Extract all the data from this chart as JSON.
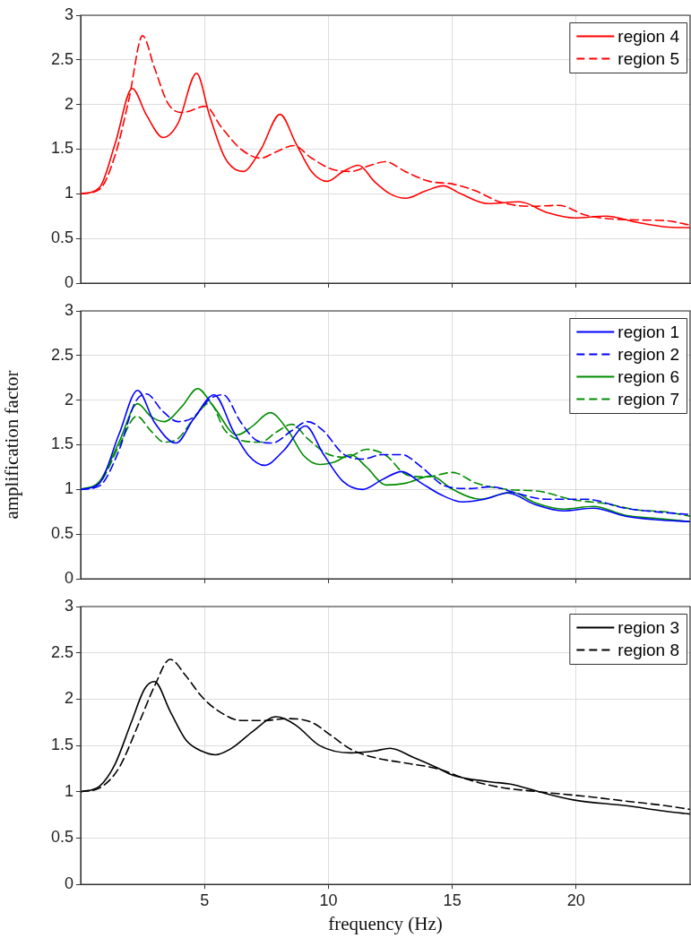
{
  "chart_data": [
    {
      "type": "line",
      "xlim": [
        0,
        24.6
      ],
      "xticks": [
        5,
        10,
        15,
        20
      ],
      "ylim": [
        0,
        3
      ],
      "yticks": [
        0,
        0.5,
        1,
        1.5,
        2,
        2.5,
        3
      ],
      "grid": true,
      "legend": "top right",
      "tick_labels": "y",
      "marker": "none",
      "series": [
        {
          "name": "region 4",
          "color": "#ff0000",
          "line_style": "solid",
          "x": [
            0,
            0.76,
            1.4,
            2.08,
            2.66,
            3.33,
            3.93,
            4.68,
            5.2,
            5.83,
            6.55,
            7.26,
            8.05,
            8.68,
            9.32,
            9.95,
            10.59,
            11.22,
            11.85,
            12.49,
            13.12,
            13.91,
            14.63,
            15.34,
            16.45,
            17.72,
            18.83,
            19.94,
            21.2,
            22.47,
            23.6,
            24.6
          ],
          "values": [
            1.0,
            1.07,
            1.57,
            2.18,
            1.88,
            1.63,
            1.79,
            2.35,
            1.88,
            1.4,
            1.25,
            1.49,
            1.89,
            1.57,
            1.25,
            1.14,
            1.25,
            1.32,
            1.14,
            1.0,
            0.95,
            1.03,
            1.09,
            1.0,
            0.89,
            0.91,
            0.79,
            0.73,
            0.75,
            0.68,
            0.63,
            0.62
          ]
        },
        {
          "name": "region 5",
          "color": "#ff0000",
          "line_style": "dashed",
          "x": [
            0,
            0.76,
            1.4,
            1.95,
            2.5,
            2.98,
            3.53,
            4.09,
            5.04,
            5.67,
            6.47,
            7.26,
            7.89,
            8.6,
            9.32,
            10.1,
            10.9,
            11.7,
            12.3,
            13.1,
            14.07,
            15.02,
            15.97,
            16.9,
            18.2,
            19.3,
            20.4,
            22.0,
            23.6,
            24.6
          ],
          "values": [
            1.0,
            1.05,
            1.44,
            2.06,
            2.77,
            2.41,
            2.01,
            1.91,
            1.98,
            1.75,
            1.5,
            1.4,
            1.47,
            1.54,
            1.4,
            1.28,
            1.25,
            1.32,
            1.36,
            1.25,
            1.14,
            1.11,
            1.03,
            0.91,
            0.86,
            0.87,
            0.76,
            0.71,
            0.7,
            0.65
          ]
        }
      ]
    },
    {
      "type": "line",
      "ylabel": "amplification factor",
      "xlim": [
        0,
        24.6
      ],
      "xticks": [
        5,
        10,
        15,
        20
      ],
      "ylim": [
        0,
        3
      ],
      "yticks": [
        0,
        0.5,
        1,
        1.5,
        2,
        2.5,
        3
      ],
      "grid": true,
      "legend": "top right",
      "tick_labels": "y",
      "marker": "none",
      "series": [
        {
          "name": "region 1",
          "color": "#0000ff",
          "line_style": "solid",
          "x": [
            0,
            0.76,
            1.55,
            2.3,
            2.98,
            3.85,
            4.56,
            5.39,
            6.15,
            6.78,
            7.42,
            8.21,
            9.08,
            9.79,
            10.59,
            11.38,
            12.17,
            12.96,
            13.76,
            14.55,
            15.42,
            16.3,
            17.24,
            18.35,
            19.46,
            20.7,
            22.0,
            23.26,
            24.6
          ],
          "values": [
            1.0,
            1.07,
            1.62,
            2.11,
            1.75,
            1.52,
            1.79,
            2.06,
            1.66,
            1.38,
            1.27,
            1.44,
            1.71,
            1.4,
            1.09,
            1.0,
            1.11,
            1.2,
            1.07,
            0.94,
            0.86,
            0.89,
            0.96,
            0.83,
            0.76,
            0.79,
            0.7,
            0.66,
            0.64
          ]
        },
        {
          "name": "region 2",
          "color": "#0000ff",
          "line_style": "dashed",
          "x": [
            0,
            0.76,
            1.55,
            2.19,
            2.66,
            3.3,
            3.93,
            4.56,
            5.2,
            5.75,
            6.47,
            7.1,
            7.73,
            8.53,
            9.16,
            9.79,
            10.59,
            11.38,
            12.17,
            12.96,
            13.76,
            14.7,
            15.66,
            16.6,
            17.56,
            18.8,
            20.4,
            22.0,
            23.6,
            24.6
          ],
          "values": [
            1.0,
            1.04,
            1.44,
            1.97,
            2.07,
            1.88,
            1.76,
            1.81,
            2.01,
            2.06,
            1.75,
            1.55,
            1.52,
            1.66,
            1.76,
            1.66,
            1.4,
            1.34,
            1.39,
            1.39,
            1.25,
            1.04,
            1.01,
            1.03,
            0.96,
            0.89,
            0.89,
            0.79,
            0.74,
            0.72
          ]
        },
        {
          "name": "region 6",
          "color": "#008c00",
          "line_style": "solid",
          "x": [
            0,
            0.76,
            1.55,
            2.3,
            2.82,
            3.38,
            4.09,
            4.72,
            5.36,
            6.31,
            6.94,
            7.65,
            8.37,
            9.0,
            9.64,
            10.27,
            10.9,
            11.54,
            12.33,
            13.12,
            14.15,
            15.02,
            16.13,
            17.4,
            18.35,
            19.46,
            20.7,
            22.0,
            23.1,
            24.6
          ],
          "values": [
            1.0,
            1.09,
            1.53,
            1.96,
            1.82,
            1.76,
            1.93,
            2.13,
            1.93,
            1.61,
            1.71,
            1.86,
            1.66,
            1.38,
            1.28,
            1.31,
            1.39,
            1.25,
            1.05,
            1.07,
            1.15,
            1.0,
            0.89,
            0.97,
            0.85,
            0.78,
            0.81,
            0.71,
            0.68,
            0.64
          ]
        },
        {
          "name": "region 7",
          "color": "#008c00",
          "line_style": "dashed",
          "x": [
            0,
            0.76,
            1.55,
            2.27,
            2.82,
            3.38,
            3.93,
            4.56,
            5.2,
            5.83,
            6.47,
            7.26,
            7.89,
            8.53,
            9.16,
            9.95,
            10.74,
            11.54,
            12.33,
            13.12,
            13.91,
            15.02,
            15.97,
            17.24,
            18.5,
            19.78,
            21.2,
            22.47,
            23.6,
            24.6
          ],
          "values": [
            1.0,
            1.07,
            1.49,
            1.82,
            1.66,
            1.53,
            1.57,
            1.79,
            1.97,
            1.66,
            1.55,
            1.53,
            1.64,
            1.73,
            1.57,
            1.4,
            1.36,
            1.45,
            1.38,
            1.17,
            1.14,
            1.19,
            1.07,
            1.0,
            0.98,
            0.89,
            0.84,
            0.77,
            0.75,
            0.7
          ]
        }
      ]
    },
    {
      "type": "line",
      "xlabel": "frequency (Hz)",
      "xlim": [
        0,
        24.6
      ],
      "xticks": [
        5,
        10,
        15,
        20
      ],
      "ylim": [
        0,
        3
      ],
      "yticks": [
        0,
        0.5,
        1,
        1.5,
        2,
        2.5,
        3
      ],
      "grid": true,
      "legend": "top right",
      "marker": "none",
      "series": [
        {
          "name": "region 3",
          "color": "#000000",
          "line_style": "solid",
          "x": [
            0,
            0.76,
            1.39,
            2.03,
            2.58,
            2.98,
            3.61,
            4.25,
            4.88,
            5.44,
            6.15,
            6.94,
            7.89,
            8.68,
            9.64,
            10.9,
            11.85,
            12.49,
            13.44,
            14.39,
            15.02,
            16.45,
            17.4,
            18.5,
            19.94,
            22.0,
            23.6,
            24.6
          ],
          "values": [
            1.0,
            1.06,
            1.3,
            1.74,
            2.11,
            2.19,
            1.87,
            1.56,
            1.44,
            1.4,
            1.48,
            1.65,
            1.81,
            1.72,
            1.5,
            1.42,
            1.44,
            1.47,
            1.37,
            1.26,
            1.18,
            1.11,
            1.08,
            1.0,
            0.91,
            0.85,
            0.79,
            0.76
          ]
        },
        {
          "name": "region 8",
          "color": "#000000",
          "line_style": "dashed",
          "x": [
            0,
            0.76,
            1.55,
            2.35,
            2.98,
            3.61,
            4.25,
            4.88,
            5.52,
            6.47,
            7.42,
            8.37,
            9.32,
            10.1,
            10.9,
            11.85,
            13.12,
            14.39,
            15.66,
            16.9,
            18.5,
            20.4,
            22.0,
            23.6,
            24.6
          ],
          "values": [
            1.0,
            1.04,
            1.26,
            1.74,
            2.14,
            2.43,
            2.25,
            2.03,
            1.88,
            1.77,
            1.77,
            1.79,
            1.75,
            1.61,
            1.46,
            1.37,
            1.31,
            1.25,
            1.13,
            1.05,
            1.0,
            0.95,
            0.9,
            0.85,
            0.81
          ]
        }
      ]
    }
  ]
}
